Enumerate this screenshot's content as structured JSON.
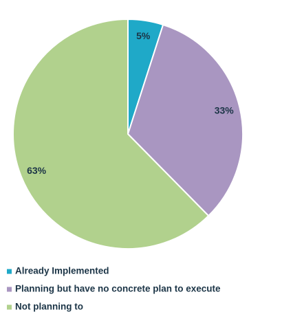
{
  "chart_data": {
    "type": "pie",
    "categories": [
      "Already Implemented",
      "Planning but have no concrete plan to execute",
      "Not planning to"
    ],
    "values": [
      5,
      33,
      63
    ],
    "value_labels": [
      "5%",
      "33%",
      "63%"
    ],
    "colors": [
      "#1fa9c8",
      "#a996c1",
      "#b1d18d"
    ]
  }
}
